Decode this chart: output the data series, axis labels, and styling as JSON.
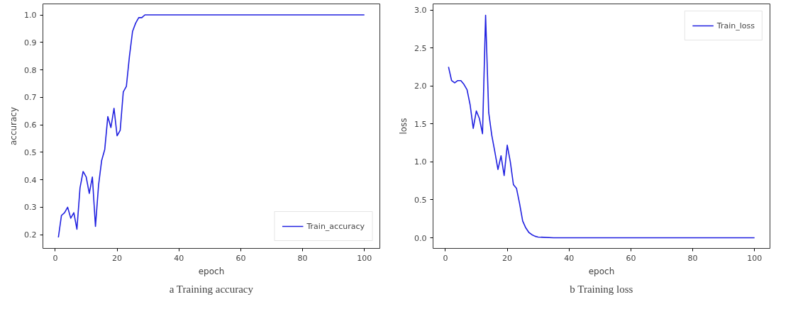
{
  "chart_data": [
    {
      "type": "line",
      "xlabel": "epoch",
      "ylabel": "accuracy",
      "xlim": [
        -4,
        105
      ],
      "ylim": [
        0.15,
        1.04
      ],
      "xticks": [
        0,
        20,
        40,
        60,
        80,
        100
      ],
      "yticks": [
        0.2,
        0.3,
        0.4,
        0.5,
        0.6,
        0.7,
        0.8,
        0.9,
        {
          "value": 1,
          "label": "1.0"
        }
      ],
      "legend": "bottom right",
      "grid": false,
      "annotations": [
        "a Training accuracy"
      ],
      "series": [
        {
          "name": "Train_accuracy",
          "color": "#2020e0",
          "x": [
            1,
            2,
            3,
            4,
            5,
            6,
            7,
            8,
            9,
            10,
            11,
            12,
            13,
            14,
            15,
            16,
            17,
            18,
            19,
            20,
            21,
            22,
            23,
            24,
            25,
            26,
            27,
            28,
            29,
            30,
            100
          ],
          "values": [
            0.19,
            0.27,
            0.28,
            0.3,
            0.26,
            0.28,
            0.22,
            0.37,
            0.43,
            0.41,
            0.35,
            0.41,
            0.23,
            0.38,
            0.47,
            0.51,
            0.63,
            0.59,
            0.66,
            0.56,
            0.58,
            0.72,
            0.74,
            0.85,
            0.94,
            0.97,
            0.99,
            0.99,
            1.0,
            1.0,
            1.0
          ]
        }
      ]
    },
    {
      "type": "line",
      "xlabel": "epoch",
      "ylabel": "loss",
      "xlim": [
        -4,
        105
      ],
      "ylim": [
        -0.14,
        3.08
      ],
      "xticks": [
        0,
        20,
        40,
        60,
        80,
        100
      ],
      "yticks": [
        {
          "value": 0,
          "label": "0.0"
        },
        0.5,
        {
          "value": 1,
          "label": "1.0"
        },
        1.5,
        {
          "value": 2,
          "label": "2.0"
        },
        2.5,
        {
          "value": 3,
          "label": "3.0"
        }
      ],
      "legend": "top right",
      "grid": false,
      "annotations": [
        "b Training loss"
      ],
      "series": [
        {
          "name": "Train_loss",
          "color": "#2020e0",
          "x": [
            1,
            2,
            3,
            4,
            5,
            6,
            7,
            8,
            9,
            10,
            11,
            12,
            13,
            14,
            15,
            16,
            17,
            18,
            19,
            20,
            21,
            22,
            23,
            24,
            25,
            26,
            27,
            28,
            29,
            30,
            35,
            100
          ],
          "values": [
            2.25,
            2.07,
            2.04,
            2.07,
            2.07,
            2.02,
            1.95,
            1.75,
            1.44,
            1.67,
            1.57,
            1.37,
            2.93,
            1.65,
            1.35,
            1.13,
            0.9,
            1.08,
            0.82,
            1.22,
            1.0,
            0.7,
            0.65,
            0.45,
            0.22,
            0.13,
            0.07,
            0.04,
            0.02,
            0.01,
            0.0,
            0.0
          ]
        }
      ]
    }
  ]
}
